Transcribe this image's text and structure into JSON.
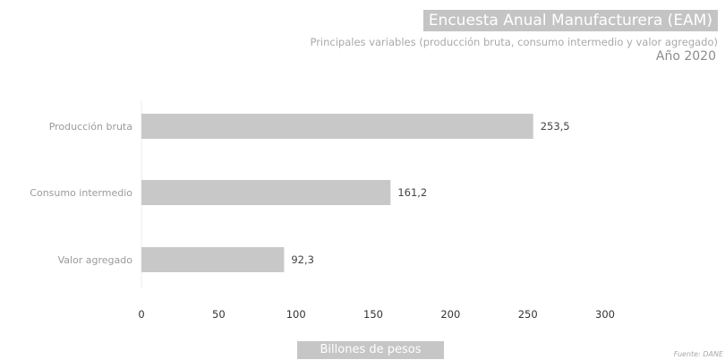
{
  "chart_data": {
    "type": "bar",
    "orientation": "horizontal",
    "title": "Encuesta Anual Manufacturera (EAM)",
    "subtitle": "Principales variables (producción bruta, consumo intermedio y valor agregado)",
    "period": "Año 2020",
    "categories": [
      "Producción bruta",
      "Consumo intermedio",
      "Valor agregado"
    ],
    "values": [
      253.5,
      161.2,
      92.3
    ],
    "value_labels": [
      "253,5",
      "161,2",
      "92,3"
    ],
    "xlabel": "Billones de pesos",
    "ylabel": "",
    "xlim": [
      0,
      300
    ],
    "xticks": [
      0,
      50,
      100,
      150,
      200,
      250,
      300
    ],
    "grid": false,
    "bar_color": "#c8c8c8",
    "source": "Fuente: DANE"
  }
}
